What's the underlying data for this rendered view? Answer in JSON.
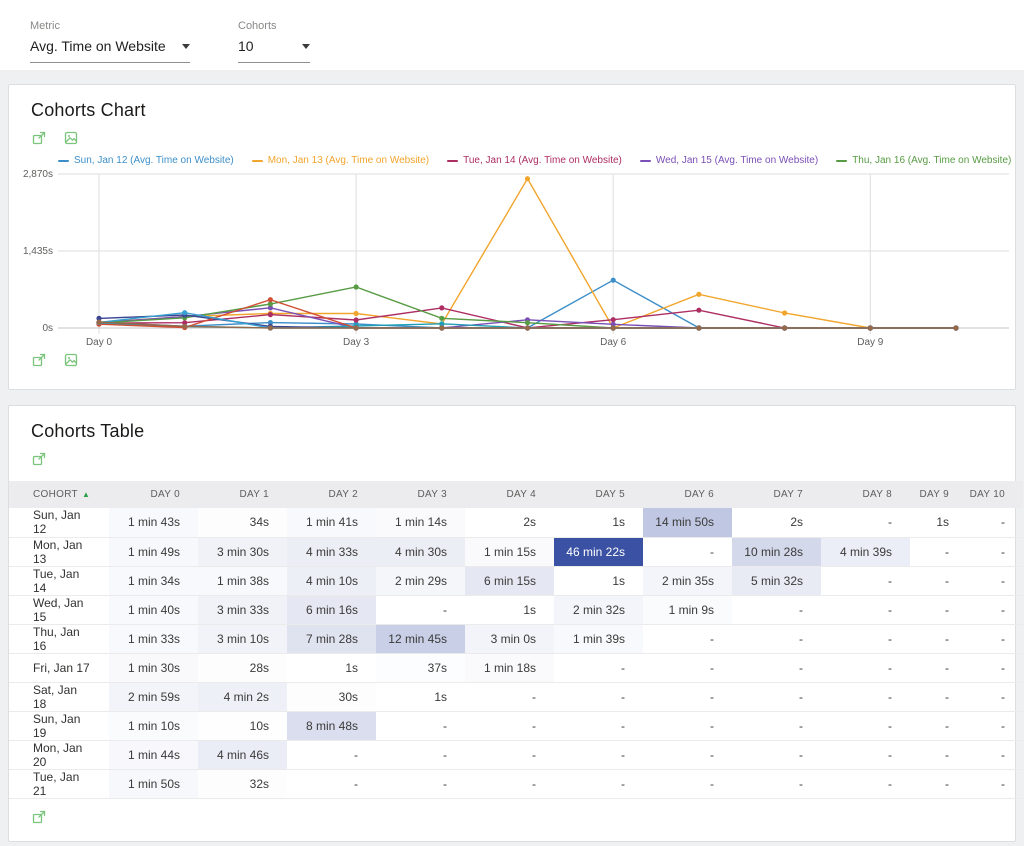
{
  "filters": {
    "metric_label": "Metric",
    "metric_value": "Avg. Time on Website",
    "cohorts_label": "Cohorts",
    "cohorts_value": "10"
  },
  "chart_panel": {
    "title": "Cohorts Chart"
  },
  "table_panel": {
    "title": "Cohorts Table"
  },
  "chart_data": {
    "type": "line",
    "title": "Cohorts Chart",
    "ylim": [
      0,
      2870
    ],
    "y_ticks": [
      {
        "value": 0,
        "label": "0s"
      },
      {
        "value": 1435,
        "label": "1,435s"
      },
      {
        "value": 2870,
        "label": "2,870s"
      }
    ],
    "x_ticks": [
      {
        "day": 0,
        "label": "Day 0"
      },
      {
        "day": 3,
        "label": "Day 3"
      },
      {
        "day": 6,
        "label": "Day 6"
      },
      {
        "day": 9,
        "label": "Day 9"
      }
    ],
    "days_max": 10,
    "grid": true,
    "legend_position": "top",
    "legend": [
      {
        "label": "Sun, Jan 12 (Avg. Time on Website)",
        "color": "#3e8fc9"
      },
      {
        "label": "Mon, Jan 13 (Avg. Time on Website)",
        "color": "#f2a52c"
      },
      {
        "label": "Tue, Jan 14 (Avg. Time on Website)",
        "color": "#ad2e63"
      },
      {
        "label": "Wed, Jan 15 (Avg. Time on Website)",
        "color": "#7a4fb6"
      },
      {
        "label": "Thu, Jan 16 (Avg. Time on Website)",
        "color": "#579b44"
      },
      {
        "label": "[...]",
        "color": "#1f9fb5"
      }
    ],
    "series": [
      {
        "name": "Sun, Jan 12",
        "color": "#3e8fc9",
        "values": [
          103,
          34,
          101,
          74,
          2,
          1,
          890,
          2,
          null,
          1,
          null
        ]
      },
      {
        "name": "Mon, Jan 13",
        "color": "#f2a52c",
        "values": [
          109,
          210,
          273,
          270,
          75,
          2782,
          null,
          628,
          279,
          null,
          null
        ]
      },
      {
        "name": "Tue, Jan 14",
        "color": "#ad2e63",
        "values": [
          94,
          98,
          250,
          149,
          375,
          1,
          155,
          332,
          null,
          null,
          null
        ]
      },
      {
        "name": "Wed, Jan 15",
        "color": "#7a4fb6",
        "values": [
          100,
          213,
          376,
          null,
          1,
          152,
          69,
          null,
          null,
          null,
          null
        ]
      },
      {
        "name": "Thu, Jan 16",
        "color": "#579b44",
        "values": [
          93,
          190,
          448,
          765,
          180,
          99,
          null,
          null,
          null,
          null,
          null
        ]
      },
      {
        "name": "Fri, Jan 17",
        "color": "#1f9fb5",
        "values": [
          90,
          28,
          1,
          37,
          78,
          null,
          null,
          null,
          null,
          null,
          null
        ]
      },
      {
        "name": "Sat, Jan 18",
        "color": "#3c4693",
        "values": [
          179,
          242,
          30,
          1,
          null,
          null,
          null,
          null,
          null,
          null,
          null
        ]
      },
      {
        "name": "Sun, Jan 19",
        "color": "#d24e34",
        "values": [
          70,
          10,
          528,
          null,
          null,
          null,
          null,
          null,
          null,
          null,
          null
        ]
      },
      {
        "name": "Mon, Jan 20",
        "color": "#35a1d0",
        "values": [
          104,
          286,
          null,
          null,
          null,
          null,
          null,
          null,
          null,
          null,
          null
        ]
      },
      {
        "name": "Tue, Jan 21",
        "color": "#96694b",
        "values": [
          110,
          32,
          null,
          null,
          null,
          null,
          null,
          null,
          null,
          null,
          null
        ]
      }
    ]
  },
  "table": {
    "columns": [
      "COHORT",
      "DAY 0",
      "DAY 1",
      "DAY 2",
      "DAY 3",
      "DAY 4",
      "DAY 5",
      "DAY 6",
      "DAY 7",
      "DAY 8",
      "DAY 9",
      "DAY 10"
    ],
    "sort_icon": "▲",
    "heat_color": "#3b51a3",
    "heat_max_seconds": 2782,
    "rows": [
      {
        "cohort": "Sun, Jan 12",
        "cells": [
          "1 min 43s",
          "34s",
          "1 min 41s",
          "1 min 14s",
          "2s",
          "1s",
          "14 min 50s",
          "2s",
          "-",
          "1s",
          "-"
        ]
      },
      {
        "cohort": "Mon, Jan 13",
        "cells": [
          "1 min 49s",
          "3 min 30s",
          "4 min 33s",
          "4 min 30s",
          "1 min 15s",
          "46 min 22s",
          "-",
          "10 min 28s",
          "4 min 39s",
          "-",
          "-"
        ]
      },
      {
        "cohort": "Tue, Jan 14",
        "cells": [
          "1 min 34s",
          "1 min 38s",
          "4 min 10s",
          "2 min 29s",
          "6 min 15s",
          "1s",
          "2 min 35s",
          "5 min 32s",
          "-",
          "-",
          "-"
        ]
      },
      {
        "cohort": "Wed, Jan 15",
        "cells": [
          "1 min 40s",
          "3 min 33s",
          "6 min 16s",
          "-",
          "1s",
          "2 min 32s",
          "1 min 9s",
          "-",
          "-",
          "-",
          "-"
        ]
      },
      {
        "cohort": "Thu, Jan 16",
        "cells": [
          "1 min 33s",
          "3 min 10s",
          "7 min 28s",
          "12 min 45s",
          "3 min 0s",
          "1 min 39s",
          "-",
          "-",
          "-",
          "-",
          "-"
        ]
      },
      {
        "cohort": "Fri, Jan 17",
        "cells": [
          "1 min 30s",
          "28s",
          "1s",
          "37s",
          "1 min 18s",
          "-",
          "-",
          "-",
          "-",
          "-",
          "-"
        ]
      },
      {
        "cohort": "Sat, Jan 18",
        "cells": [
          "2 min 59s",
          "4 min 2s",
          "30s",
          "1s",
          "-",
          "-",
          "-",
          "-",
          "-",
          "-",
          "-"
        ]
      },
      {
        "cohort": "Sun, Jan 19",
        "cells": [
          "1 min 10s",
          "10s",
          "8 min 48s",
          "-",
          "-",
          "-",
          "-",
          "-",
          "-",
          "-",
          "-"
        ]
      },
      {
        "cohort": "Mon, Jan 20",
        "cells": [
          "1 min 44s",
          "4 min 46s",
          "-",
          "-",
          "-",
          "-",
          "-",
          "-",
          "-",
          "-",
          "-"
        ]
      },
      {
        "cohort": "Tue, Jan 21",
        "cells": [
          "1 min 50s",
          "32s",
          "-",
          "-",
          "-",
          "-",
          "-",
          "-",
          "-",
          "-",
          "-"
        ]
      }
    ]
  }
}
